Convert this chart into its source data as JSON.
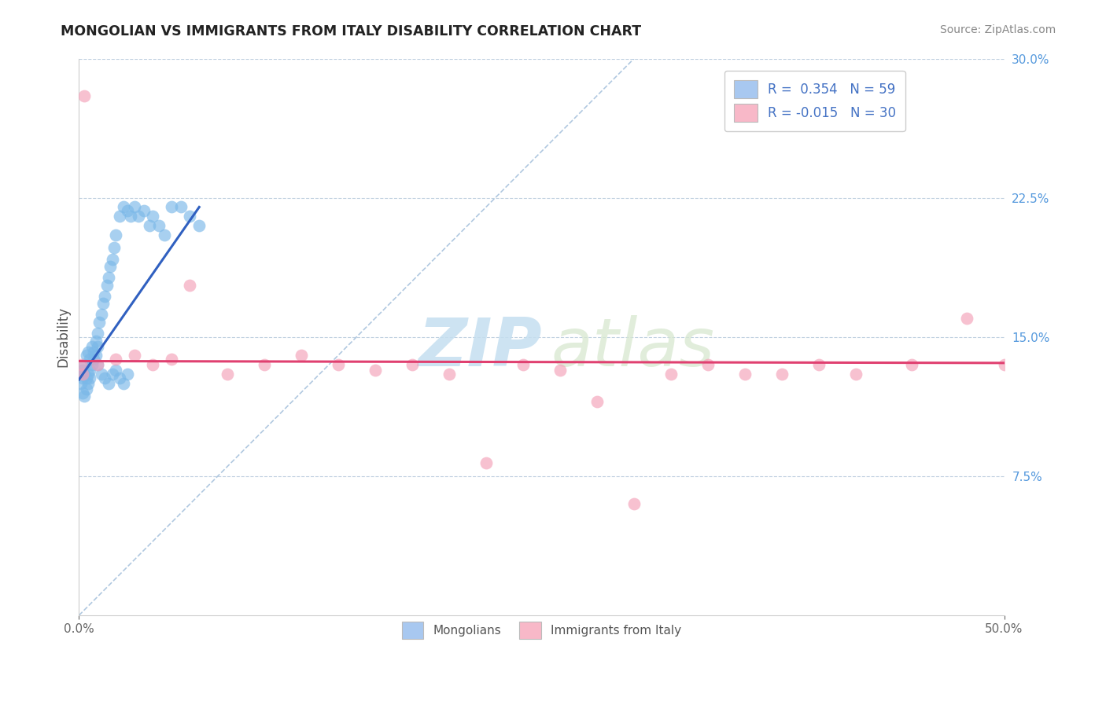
{
  "title": "MONGOLIAN VS IMMIGRANTS FROM ITALY DISABILITY CORRELATION CHART",
  "source": "Source: ZipAtlas.com",
  "ylabel": "Disability",
  "xlim": [
    0.0,
    0.5
  ],
  "ylim": [
    0.0,
    0.3
  ],
  "yticks_right": [
    0.075,
    0.15,
    0.225,
    0.3
  ],
  "ytick_labels_right": [
    "7.5%",
    "15.0%",
    "22.5%",
    "30.0%"
  ],
  "legend_color1": "#a8c8f0",
  "legend_color2": "#f8b8c8",
  "watermark_zip": "ZIP",
  "watermark_atlas": "atlas",
  "bg_color": "#ffffff",
  "grid_color": "#c0d0e0",
  "mongolian_color": "#7ab8e8",
  "italy_color": "#f4a0b8",
  "trend_mongolian": "#3060c0",
  "trend_italy": "#e04070",
  "diagonal_color": "#b0c8e0",
  "mongolian_x": [
    0.001,
    0.001,
    0.002,
    0.002,
    0.002,
    0.003,
    0.003,
    0.003,
    0.004,
    0.004,
    0.004,
    0.005,
    0.005,
    0.005,
    0.006,
    0.006,
    0.006,
    0.007,
    0.007,
    0.008,
    0.008,
    0.009,
    0.009,
    0.01,
    0.01,
    0.011,
    0.012,
    0.013,
    0.014,
    0.015,
    0.016,
    0.017,
    0.018,
    0.019,
    0.02,
    0.022,
    0.024,
    0.026,
    0.028,
    0.03,
    0.032,
    0.035,
    0.038,
    0.04,
    0.043,
    0.046,
    0.05,
    0.055,
    0.06,
    0.065,
    0.01,
    0.012,
    0.014,
    0.016,
    0.018,
    0.02,
    0.022,
    0.024,
    0.026
  ],
  "mongolian_y": [
    0.13,
    0.125,
    0.132,
    0.128,
    0.12,
    0.135,
    0.13,
    0.118,
    0.14,
    0.128,
    0.122,
    0.142,
    0.13,
    0.125,
    0.138,
    0.132,
    0.128,
    0.145,
    0.135,
    0.142,
    0.138,
    0.148,
    0.14,
    0.152,
    0.145,
    0.158,
    0.162,
    0.168,
    0.172,
    0.178,
    0.182,
    0.188,
    0.192,
    0.198,
    0.205,
    0.215,
    0.22,
    0.218,
    0.215,
    0.22,
    0.215,
    0.218,
    0.21,
    0.215,
    0.21,
    0.205,
    0.22,
    0.22,
    0.215,
    0.21,
    0.135,
    0.13,
    0.128,
    0.125,
    0.13,
    0.132,
    0.128,
    0.125,
    0.13
  ],
  "italy_x": [
    0.001,
    0.002,
    0.003,
    0.01,
    0.02,
    0.03,
    0.04,
    0.05,
    0.06,
    0.08,
    0.1,
    0.12,
    0.14,
    0.16,
    0.18,
    0.2,
    0.22,
    0.24,
    0.26,
    0.28,
    0.3,
    0.32,
    0.34,
    0.36,
    0.38,
    0.4,
    0.42,
    0.45,
    0.48,
    0.5
  ],
  "italy_y": [
    0.135,
    0.13,
    0.28,
    0.135,
    0.138,
    0.14,
    0.135,
    0.138,
    0.178,
    0.13,
    0.135,
    0.14,
    0.135,
    0.132,
    0.135,
    0.13,
    0.082,
    0.135,
    0.132,
    0.115,
    0.06,
    0.13,
    0.135,
    0.13,
    0.13,
    0.135,
    0.13,
    0.135,
    0.16,
    0.135
  ],
  "trend_m_x0": 0.0,
  "trend_m_y0": 0.127,
  "trend_m_x1": 0.065,
  "trend_m_y1": 0.22,
  "trend_i_x0": 0.0,
  "trend_i_y0": 0.137,
  "trend_i_x1": 0.5,
  "trend_i_y1": 0.136
}
